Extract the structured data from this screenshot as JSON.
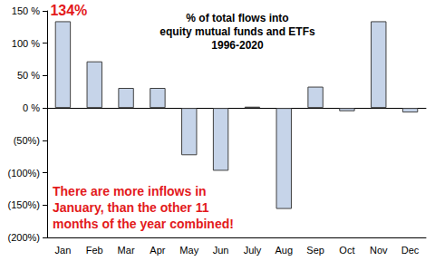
{
  "chart_data": {
    "type": "bar",
    "title": "% of total flows into\nequity mutual funds and ETFs\n1996-2020",
    "categories": [
      "Jan",
      "Feb",
      "Mar",
      "Apr",
      "May",
      "Jun",
      "July",
      "Aug",
      "Sep",
      "Oct",
      "Nov",
      "Dec"
    ],
    "values": [
      134,
      72,
      31,
      31,
      -73,
      -97,
      2,
      -156,
      33,
      -5,
      134,
      -7
    ],
    "color": "#c6d4e9",
    "ylim": [
      -200,
      150
    ],
    "yticks": [
      {
        "value": -200,
        "label": "(200%)"
      },
      {
        "value": -150,
        "label": "(150%)"
      },
      {
        "value": -100,
        "label": "(100%)"
      },
      {
        "value": -50,
        "label": "(50%)"
      },
      {
        "value": 0,
        "label": "0 %"
      },
      {
        "value": 50,
        "label": "50 %"
      },
      {
        "value": 100,
        "label": "100 %"
      },
      {
        "value": 150,
        "label": "150 %"
      }
    ],
    "grid": false,
    "annotations": [
      {
        "text": "134%"
      },
      {
        "text": "There are more inflows in\nJanuary, than the other 11\nmonths of the year combined!"
      }
    ]
  }
}
